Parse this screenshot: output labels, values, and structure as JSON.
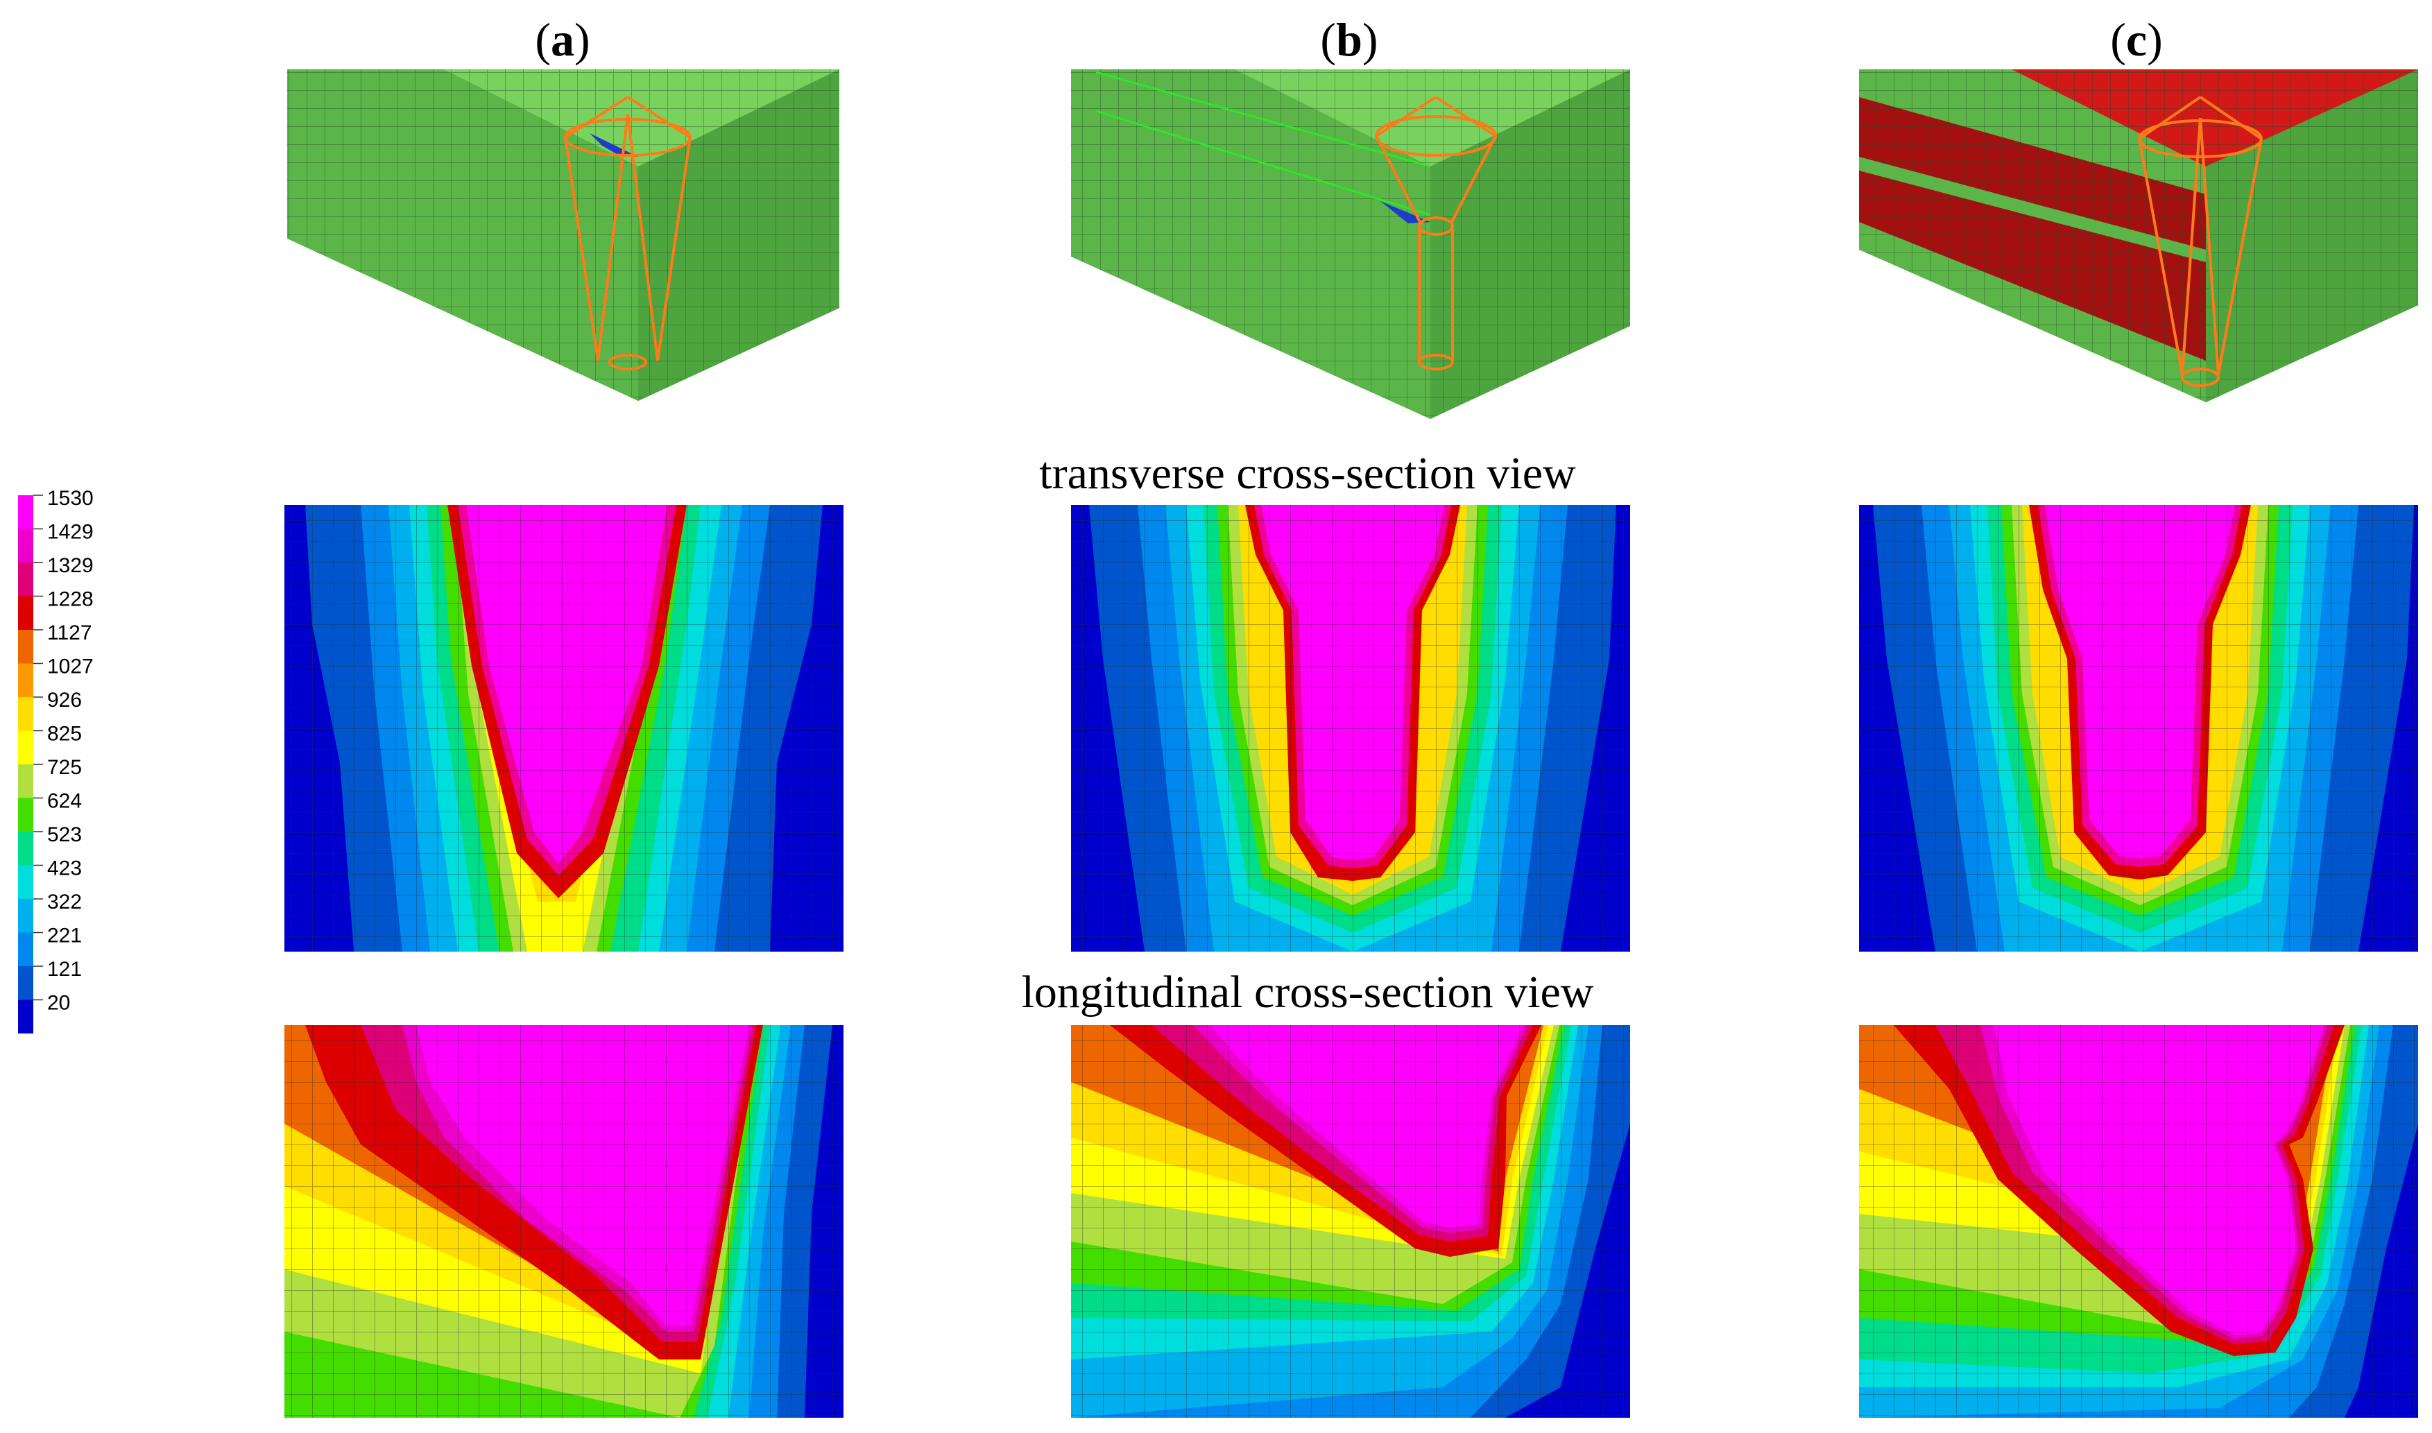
{
  "panel_labels": [
    {
      "open": "(",
      "letter": "a",
      "close": ")"
    },
    {
      "open": "(",
      "letter": "b",
      "close": ")"
    },
    {
      "open": "(",
      "letter": "c",
      "close": ")"
    }
  ],
  "row_titles": {
    "transverse": "transverse cross-section view",
    "longitudinal": "longitudinal cross-section view"
  },
  "legend": {
    "levels": [
      "1530",
      "1429",
      "1329",
      "1228",
      "1127",
      "1027",
      "926",
      "825",
      "725",
      "624",
      "523",
      "423",
      "322",
      "221",
      "121",
      "20"
    ],
    "colors": [
      "#ff00ff",
      "#ee00cc",
      "#dd0077",
      "#dd0000",
      "#ee6600",
      "#ff9900",
      "#ffdd00",
      "#ffff00",
      "#b0e040",
      "#44dd00",
      "#00dd88",
      "#00dddd",
      "#00b0ee",
      "#0088ee",
      "#0055cc",
      "#0000cc"
    ]
  },
  "colors": {
    "mesh_green_top": "#7ad25e",
    "mesh_green_front": "#5bb548",
    "mesh_green_side": "#4ea43e",
    "layer_red": "#c81414",
    "heat_source": "#ff7a1a",
    "boundary_blue": "#1e3cc8"
  }
}
